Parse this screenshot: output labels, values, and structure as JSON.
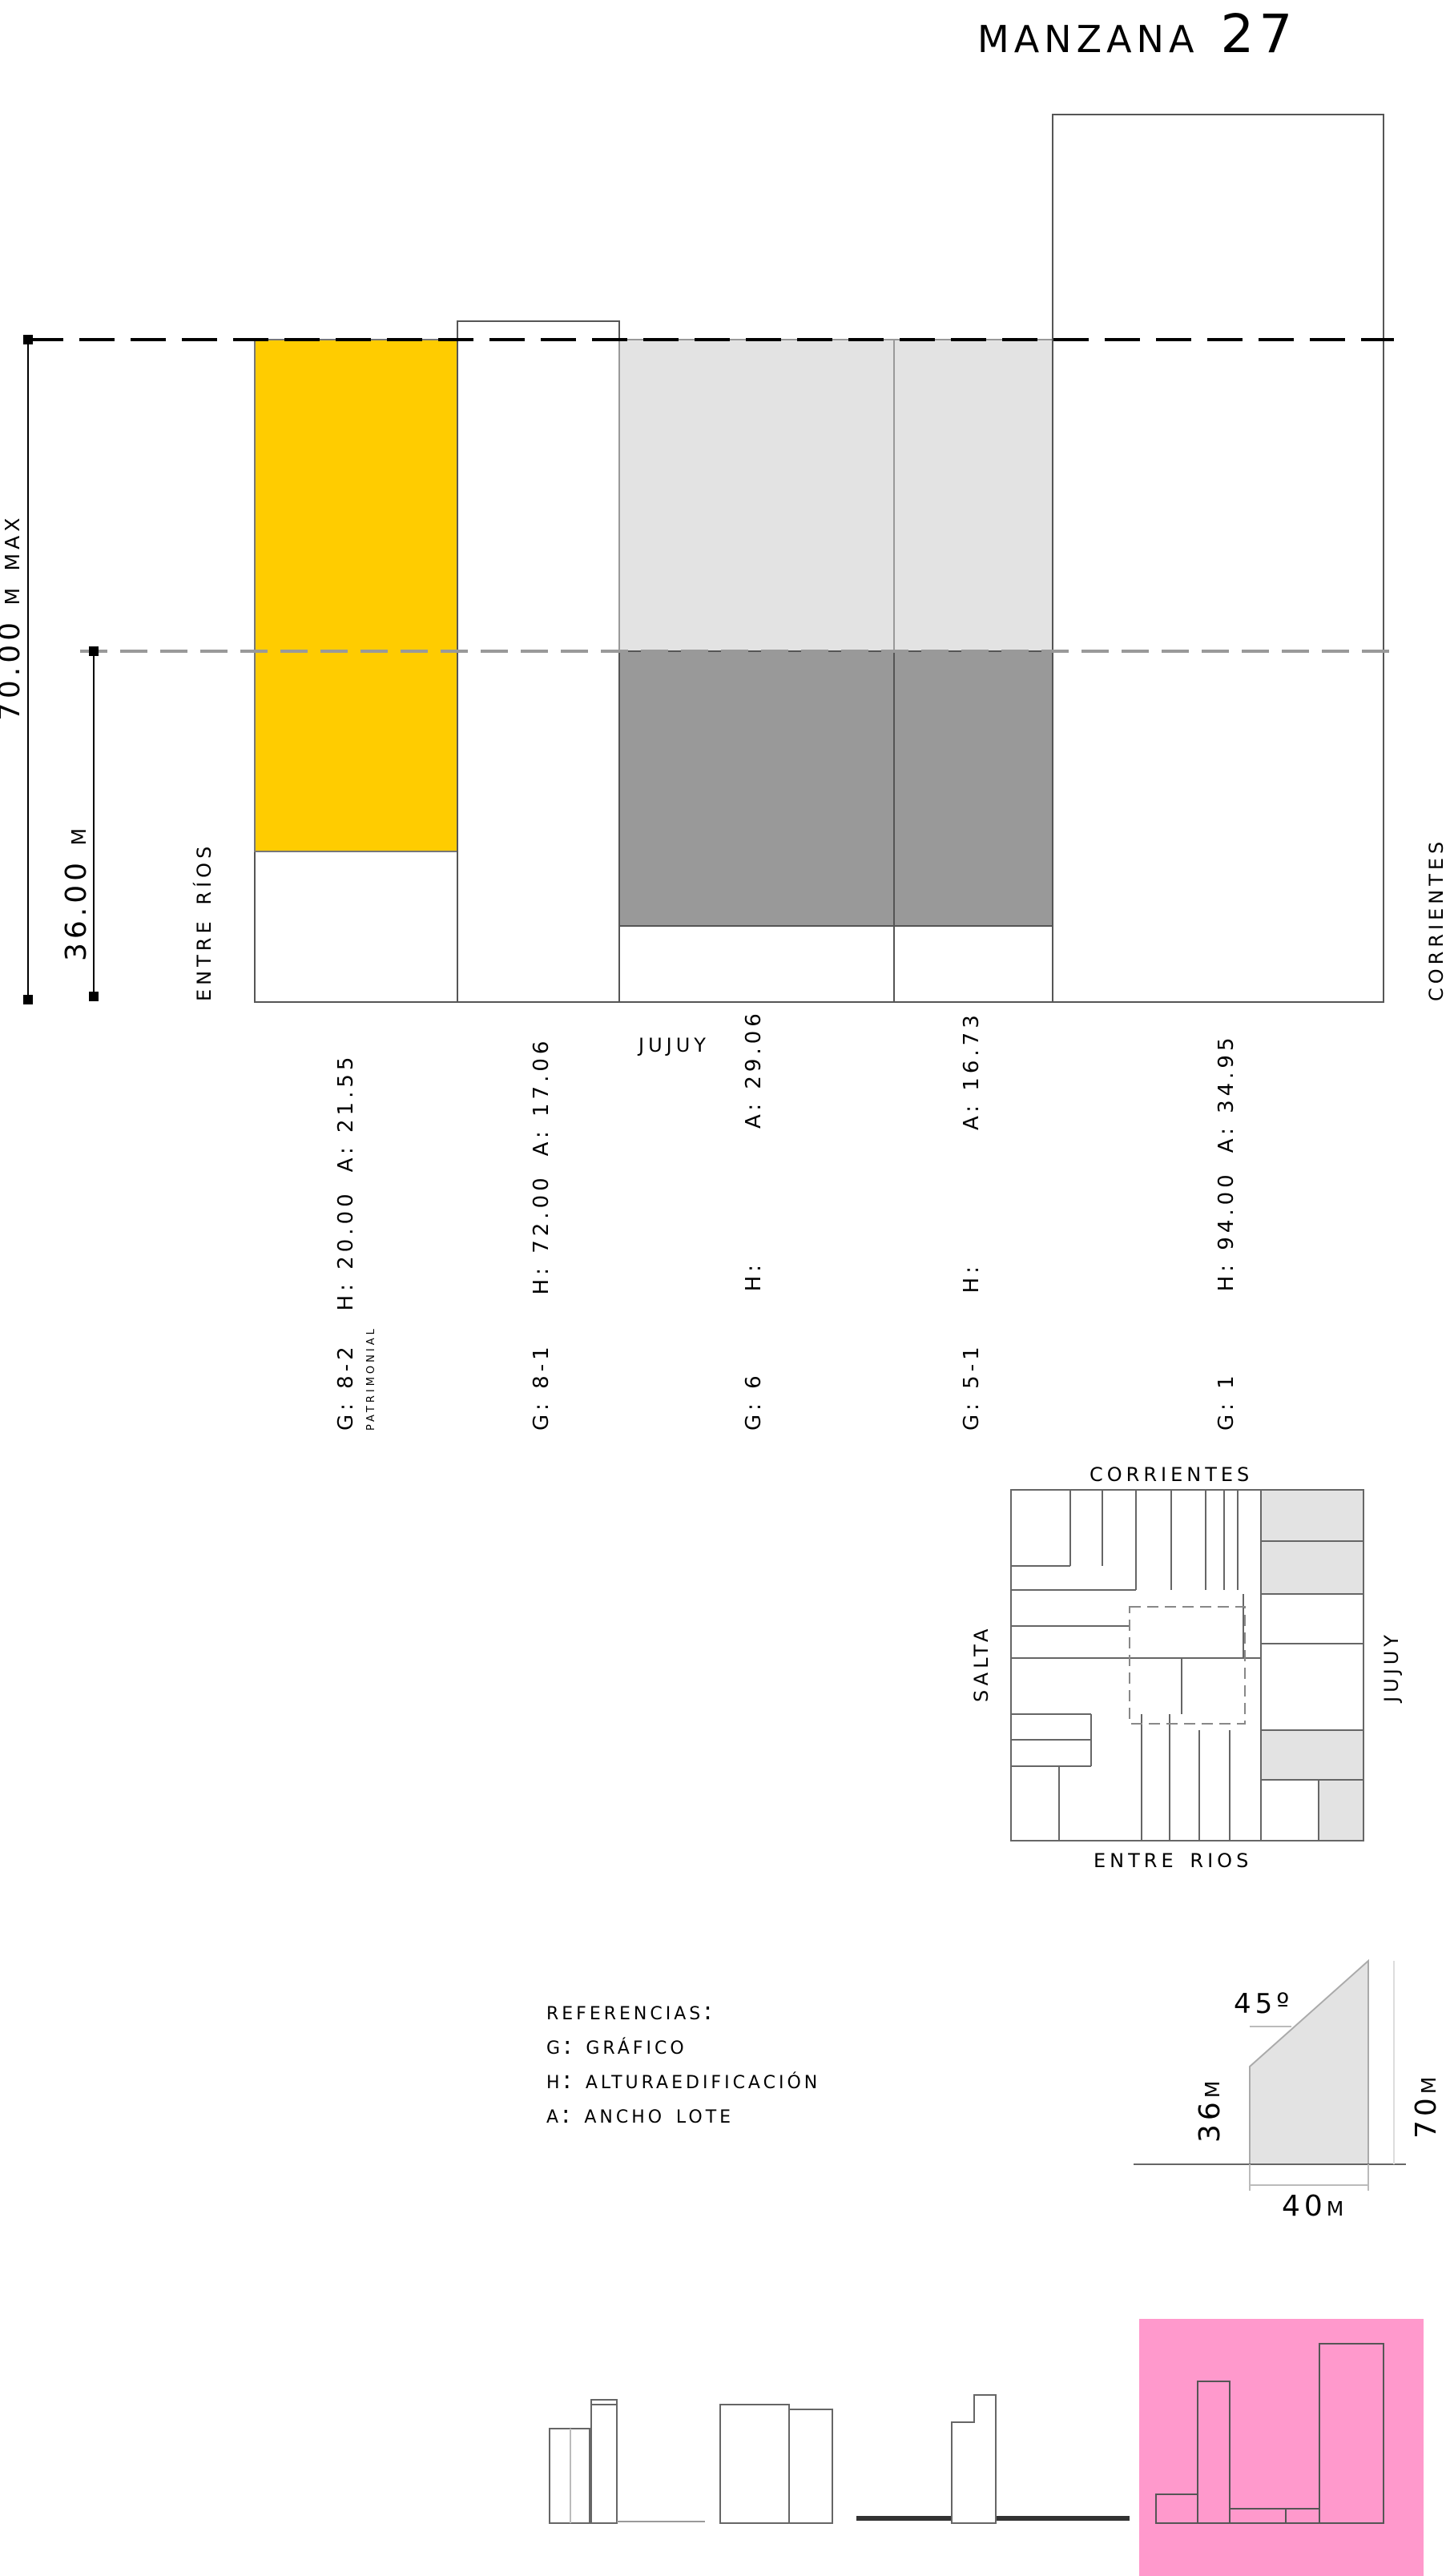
{
  "title": "Manzana 27",
  "elevation": {
    "street_label": "Jujuy",
    "left_street": "Entre Ríos",
    "right_street": "Corrientes",
    "max_height_label": "70.00 m max",
    "mid_height_label": "36.00 m"
  },
  "lots": [
    {
      "g": "G: 8-2",
      "h": "H: 20.00",
      "a": "A: 21.55",
      "note": "patrimonial"
    },
    {
      "g": "G: 8-1",
      "h": "H: 72.00",
      "a": "A: 17.06",
      "note": ""
    },
    {
      "g": "G: 6",
      "h": "H:",
      "a": "A: 29.06",
      "note": ""
    },
    {
      "g": "G: 5-1",
      "h": "H:",
      "a": "A: 16.73",
      "note": ""
    },
    {
      "g": "G: 1",
      "h": "H: 94.00",
      "a": "A: 34.95",
      "note": ""
    }
  ],
  "plan": {
    "top": "Corrientes",
    "bottom": "Entre rios",
    "left": "Salta",
    "right": "Jujuy"
  },
  "references": {
    "heading": "Referencias:",
    "g": "G: gráfico",
    "h": "H: alturaedificación",
    "a": "A: ancho lote"
  },
  "section": {
    "angle": "45º",
    "h1": "36m",
    "h2": "70m",
    "width": "40m"
  },
  "colors": {
    "patrimonial": "#ffcc00",
    "light_gray": "#e3e3e3",
    "dark_gray": "#999999",
    "pink": "#ff99cc"
  }
}
